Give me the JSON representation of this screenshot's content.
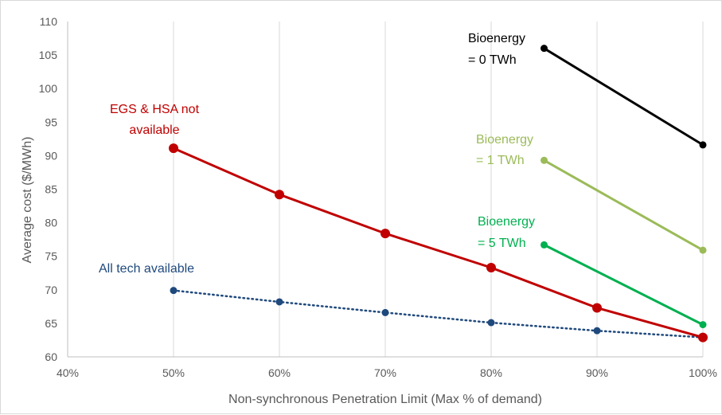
{
  "chart_data": {
    "type": "line",
    "xlabel": "Non-synchronous Penetration Limit (Max % of demand)",
    "ylabel": "Average cost ($/MWh)",
    "xlim": [
      40,
      100
    ],
    "ylim": [
      60,
      110
    ],
    "x_ticks": [
      "40%",
      "50%",
      "60%",
      "70%",
      "80%",
      "90%",
      "100%"
    ],
    "y_ticks": [
      "60",
      "65",
      "70",
      "75",
      "80",
      "85",
      "90",
      "95",
      "100",
      "105",
      "110"
    ],
    "grid": "vertical",
    "series": [
      {
        "label_lines": [
          "EGS & HSA not",
          "available"
        ],
        "color": "#c00000",
        "style": "solid",
        "marker": "large-circle",
        "x": [
          50,
          60,
          70,
          80,
          90,
          100
        ],
        "y": [
          91.1,
          84.2,
          78.4,
          73.3,
          67.3,
          62.9
        ]
      },
      {
        "label_lines": [
          "All tech available"
        ],
        "color": "#1f497d",
        "style": "dotted",
        "marker": "small-circle",
        "x": [
          50,
          60,
          70,
          80,
          90,
          100
        ],
        "y": [
          69.9,
          68.2,
          66.6,
          65.1,
          63.9,
          62.9
        ]
      },
      {
        "label_lines": [
          "Bioenergy",
          "= 0 TWh"
        ],
        "color": "#000000",
        "style": "solid",
        "marker": "small-circle",
        "x": [
          85,
          100
        ],
        "y": [
          106,
          91.6
        ]
      },
      {
        "label_lines": [
          "Bioenergy",
          "= 1 TWh"
        ],
        "color": "#9bbb59",
        "style": "solid",
        "marker": "small-circle",
        "x": [
          85,
          100
        ],
        "y": [
          89.3,
          75.9
        ]
      },
      {
        "label_lines": [
          "Bioenergy",
          "= 5 TWh"
        ],
        "color": "#00b050",
        "style": "solid",
        "marker": "small-circle",
        "x": [
          85,
          100
        ],
        "y": [
          76.7,
          64.8
        ]
      }
    ]
  }
}
